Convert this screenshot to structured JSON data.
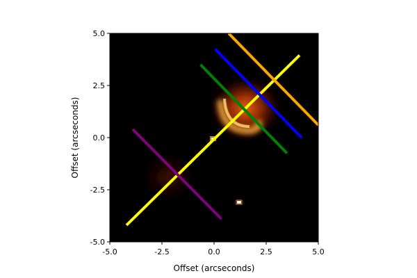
{
  "chart_data": {
    "type": "heatmap",
    "title": "",
    "xlabel": "Offset (arcseconds)",
    "ylabel": "Offset (arcseconds)",
    "xlim": [
      -5.0,
      5.0
    ],
    "ylim": [
      -5.0,
      5.0
    ],
    "x_ticks": [
      -5.0,
      -2.5,
      0.0,
      2.5,
      5.0
    ],
    "x_tick_labels": [
      "-5.0",
      "-2.5",
      "0.0",
      "2.5",
      "5.0"
    ],
    "y_ticks": [
      -5.0,
      -2.5,
      0.0,
      2.5,
      5.0
    ],
    "y_tick_labels": [
      "-5.0",
      "-2.5",
      "0.0",
      "2.5",
      "5.0"
    ],
    "grid": false,
    "colormap": "afmhot-like (black to red to yellow)",
    "background_color": "#000000",
    "image_features": [
      {
        "kind": "bright-arc",
        "center": [
          1.5,
          1.4
        ],
        "peak_intensity": 1.0
      },
      {
        "kind": "faint-diffuse",
        "center": [
          -2.2,
          -1.9
        ],
        "peak_intensity": 0.25
      },
      {
        "kind": "compact-source",
        "center": [
          1.2,
          -3.1
        ],
        "peak_intensity": 1.0
      },
      {
        "kind": "compact-source",
        "center": [
          -0.05,
          -0.05
        ],
        "peak_intensity": 1.0
      }
    ],
    "lines": [
      {
        "color": "#ffff00",
        "x": [
          -4.2,
          4.1
        ],
        "y": [
          -4.2,
          3.95
        ]
      },
      {
        "color": "#ffa500",
        "x": [
          0.7,
          5.0
        ],
        "y": [
          5.0,
          0.6
        ]
      },
      {
        "color": "#0000ff",
        "x": [
          0.05,
          4.2
        ],
        "y": [
          4.25,
          0.0
        ]
      },
      {
        "color": "#008000",
        "x": [
          -0.65,
          3.5
        ],
        "y": [
          3.5,
          -0.75
        ]
      },
      {
        "color": "#800080",
        "x": [
          -3.9,
          0.35
        ],
        "y": [
          0.4,
          -3.9
        ]
      }
    ]
  }
}
